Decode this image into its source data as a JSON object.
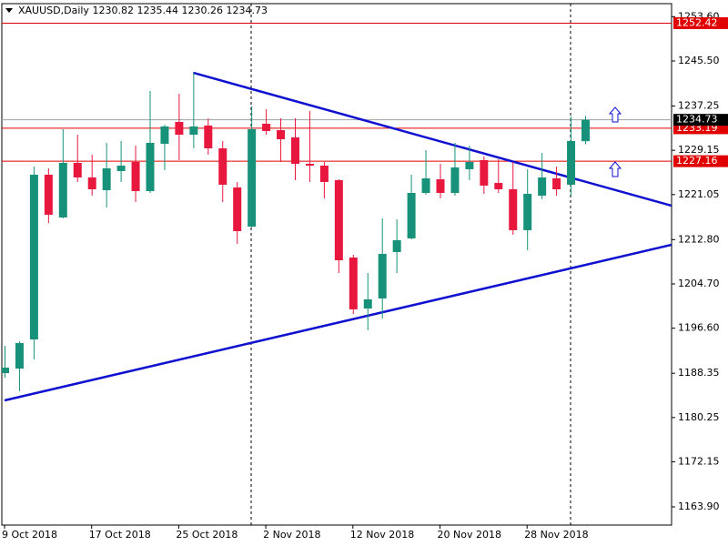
{
  "chart_data": {
    "type": "candlestick",
    "title": "XAUUSD,Daily",
    "categories": [
      "9 Oct 2018",
      null,
      null,
      null,
      null,
      null,
      "17 Oct 2018",
      null,
      null,
      null,
      null,
      null,
      "25 Oct 2018",
      null,
      null,
      null,
      null,
      null,
      "2 Nov 2018",
      null,
      null,
      null,
      null,
      null,
      "12 Nov 2018",
      null,
      null,
      null,
      null,
      null,
      "20 Nov 2018",
      null,
      null,
      null,
      null,
      null,
      "28 Nov 2018",
      null,
      null,
      null,
      null
    ],
    "open": [
      1188.38,
      1189.21,
      1194.54,
      1224.68,
      1216.86,
      1226.85,
      1224.18,
      1221.85,
      1225.35,
      1227.02,
      1221.69,
      1230.35,
      1234.34,
      1232.01,
      1233.68,
      1229.51,
      1222.35,
      1215.19,
      1234.01,
      1232.84,
      1231.51,
      1226.68,
      1226.35,
      1223.68,
      1209.53,
      1200.2,
      1202.04,
      1210.53,
      1213.03,
      1221.35,
      1223.85,
      1221.35,
      1225.68,
      1227.35,
      1223.19,
      1222.02,
      1214.53,
      1220.85,
      1224.02,
      1222.85,
      1230.82
    ],
    "high": [
      1193.38,
      1194.21,
      1226.18,
      1225.85,
      1233.01,
      1232.01,
      1228.35,
      1230.51,
      1230.85,
      1230.01,
      1240.0,
      1233.84,
      1239.5,
      1243.34,
      1235.01,
      1230.85,
      1223.35,
      1237.17,
      1236.67,
      1235.01,
      1235.01,
      1236.34,
      1227.02,
      1223.85,
      1210.03,
      1206.7,
      1216.69,
      1216.52,
      1224.68,
      1229.18,
      1226.68,
      1230.51,
      1230.01,
      1228.01,
      1227.51,
      1227.02,
      1225.68,
      1228.68,
      1226.18,
      1235.34,
      1235.44
    ],
    "low": [
      1187.55,
      1185.05,
      1190.88,
      1215.86,
      1216.69,
      1223.35,
      1220.85,
      1218.69,
      1223.35,
      1219.69,
      1221.35,
      1225.52,
      1227.35,
      1229.51,
      1228.35,
      1219.69,
      1212.03,
      1215.03,
      1232.01,
      1227.02,
      1223.68,
      1223.35,
      1220.35,
      1206.7,
      1199.2,
      1196.21,
      1198.37,
      1206.7,
      1212.86,
      1221.02,
      1220.35,
      1220.85,
      1223.68,
      1221.19,
      1221.35,
      1213.69,
      1210.86,
      1220.19,
      1220.85,
      1220.85,
      1230.26
    ],
    "close": [
      1189.38,
      1193.88,
      1224.68,
      1217.36,
      1226.85,
      1224.18,
      1222.02,
      1225.85,
      1226.35,
      1221.69,
      1230.51,
      1233.51,
      1232.01,
      1233.51,
      1229.51,
      1222.85,
      1214.36,
      1233.01,
      1232.68,
      1231.18,
      1226.68,
      1226.35,
      1223.35,
      1209.03,
      1200.04,
      1201.87,
      1210.2,
      1212.69,
      1221.35,
      1224.02,
      1221.35,
      1226.02,
      1227.02,
      1222.69,
      1222.02,
      1214.53,
      1221.19,
      1224.18,
      1222.02,
      1230.85,
      1234.73
    ],
    "up_color": "#17917a",
    "down_color": "#e8173d",
    "ylim": [
      1160.57,
      1255.99
    ],
    "yticks": [
      {
        "value": 1253.6,
        "label": "1253.60"
      },
      {
        "value": 1245.5,
        "label": "1245.50"
      },
      1237.25,
      1229.15,
      1221.05,
      {
        "value": 1212.8,
        "label": "1212.80"
      },
      {
        "value": 1204.7,
        "label": "1204.70"
      },
      {
        "value": 1196.6,
        "label": "1196.60"
      },
      1188.35,
      1180.25,
      1172.15,
      {
        "value": 1163.9,
        "label": "1163.90"
      }
    ],
    "levels": [
      1252.42,
      1233.19,
      1227.16
    ],
    "level_color": "#e00000",
    "price_line_color": "#9aa5a5",
    "trendlines": [
      {
        "x": [
          13,
          45.96
        ],
        "values": [
          1243.34,
          1219.02
        ],
        "color": "#1010d0"
      },
      {
        "x": [
          0,
          45.96
        ],
        "values": [
          1183.38,
          1211.86
        ],
        "color": "#1010d0"
      }
    ]
  }
}
